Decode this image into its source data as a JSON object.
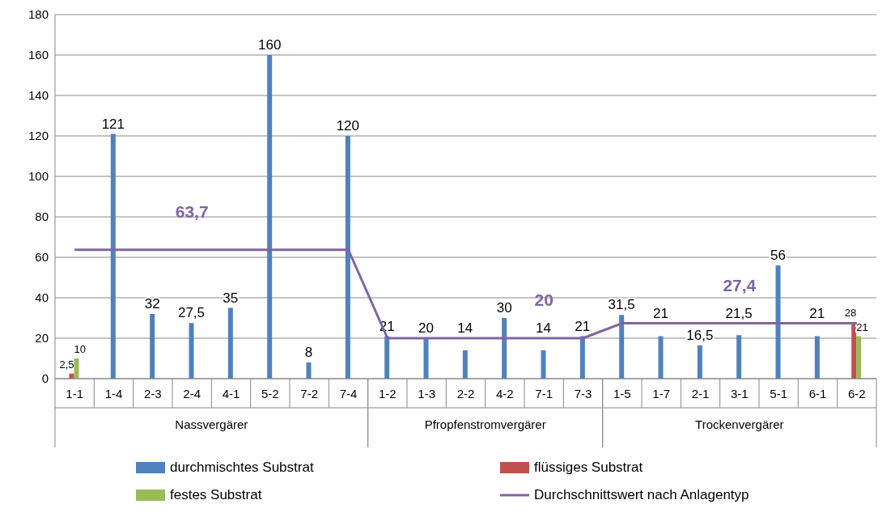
{
  "chart_data": {
    "type": "bar",
    "categories": [
      "1-1",
      "1-4",
      "2-3",
      "2-4",
      "4-1",
      "5-2",
      "7-2",
      "7-4",
      "1-2",
      "1-3",
      "2-2",
      "4-2",
      "7-1",
      "7-3",
      "1-5",
      "1-7",
      "2-1",
      "3-1",
      "5-1",
      "6-1",
      "6-2"
    ],
    "series": [
      {
        "name": "durchmischtes Substrat",
        "color": "#4f81bd",
        "values": [
          null,
          121,
          32,
          27.5,
          35,
          160,
          8,
          120,
          21,
          20,
          14,
          30,
          14,
          21,
          31.5,
          21,
          16.5,
          21.5,
          56,
          21,
          null
        ],
        "value_labels": [
          null,
          "121",
          "32",
          "27,5",
          "35",
          "160",
          "8",
          "120",
          "21",
          "20",
          "14",
          "30",
          "14",
          "21",
          "31,5",
          "21",
          "16,5",
          "21,5",
          "56",
          "21",
          null
        ]
      },
      {
        "name": "flüssiges Substrat",
        "color": "#c0504d",
        "values": [
          2.5,
          null,
          null,
          null,
          null,
          null,
          null,
          null,
          null,
          null,
          null,
          null,
          null,
          null,
          null,
          null,
          null,
          null,
          null,
          null,
          28
        ],
        "value_labels": [
          "2,5",
          null,
          null,
          null,
          null,
          null,
          null,
          null,
          null,
          null,
          null,
          null,
          null,
          null,
          null,
          null,
          null,
          null,
          null,
          null,
          "28"
        ]
      },
      {
        "name": "festes Substrat",
        "color": "#9bbb59",
        "values": [
          10,
          null,
          null,
          null,
          null,
          null,
          null,
          null,
          null,
          null,
          null,
          null,
          null,
          null,
          null,
          null,
          null,
          null,
          null,
          null,
          21
        ],
        "value_labels": [
          "10",
          null,
          null,
          null,
          null,
          null,
          null,
          null,
          null,
          null,
          null,
          null,
          null,
          null,
          null,
          null,
          null,
          null,
          null,
          null,
          "21"
        ]
      },
      {
        "name": "Durchschnittswert nach Anlagentyp",
        "type": "line",
        "color": "#8064a2",
        "values": [
          63.7,
          63.7,
          63.7,
          63.7,
          63.7,
          63.7,
          63.7,
          63.7,
          20,
          20,
          20,
          20,
          20,
          20,
          27.4,
          27.4,
          27.4,
          27.4,
          27.4,
          27.4,
          27.4
        ],
        "value_labels": [
          null,
          null,
          null,
          "63,7",
          null,
          null,
          null,
          null,
          null,
          null,
          null,
          null,
          "20",
          null,
          null,
          null,
          null,
          "27,4",
          null,
          null,
          null
        ]
      }
    ],
    "annotations": [
      "Nassvergärer",
      "Pfropfenstromvergärer",
      "Trockenvergärer"
    ],
    "ylim": [
      0,
      180
    ],
    "yticks": [
      0,
      20,
      40,
      60,
      80,
      100,
      120,
      140,
      160,
      180
    ],
    "grid": "y",
    "legend": "bottom",
    "marker": "none",
    "line_style": "solid"
  }
}
